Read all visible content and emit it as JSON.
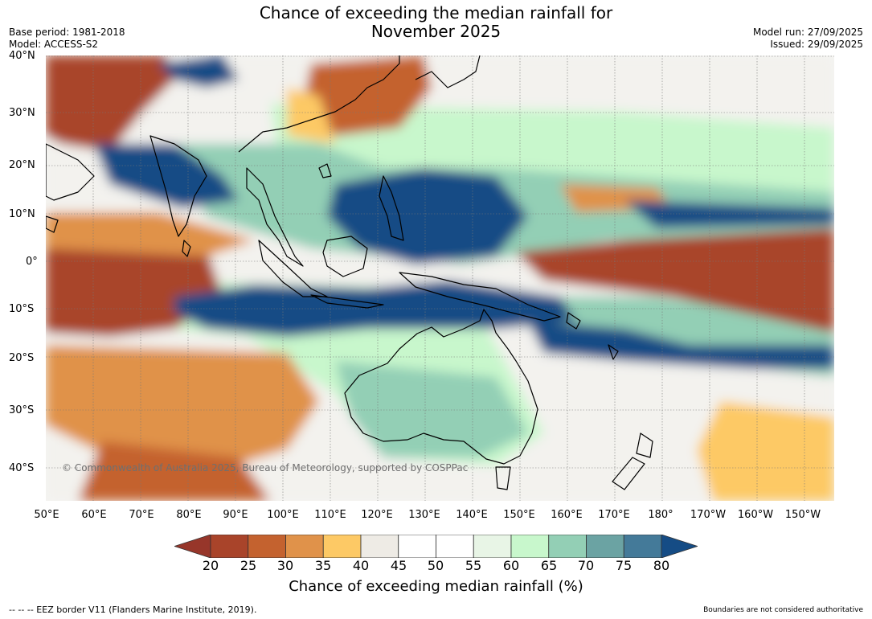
{
  "title_line1": "Chance of exceeding the median rainfall for",
  "title_line2": "November 2025",
  "base_period": "Base period: 1981-2018",
  "model": "Model: ACCESS-S2",
  "model_run": "Model run: 27/09/2025",
  "issued": "Issued: 29/09/2025",
  "copyright": "© Commonwealth of Australia 2025, Bureau of Meteorology, supported by COSPPac",
  "lat_labels": [
    "40°N",
    "30°N",
    "20°N",
    "10°N",
    "0°",
    "10°S",
    "20°S",
    "30°S",
    "40°S"
  ],
  "lon_labels": [
    "50°E",
    "60°E",
    "70°E",
    "80°E",
    "90°E",
    "100°E",
    "110°E",
    "120°E",
    "130°E",
    "140°E",
    "150°E",
    "160°E",
    "170°E",
    "180°",
    "170°W",
    "160°W",
    "150°W"
  ],
  "colorbar": {
    "label": "Chance of exceeding median rainfall (%)",
    "ticks": [
      "20",
      "25",
      "30",
      "35",
      "40",
      "45",
      "50",
      "55",
      "60",
      "65",
      "70",
      "75",
      "80"
    ],
    "under_color": "#97362a",
    "over_color": "#154c85",
    "colors": [
      "#a9442a",
      "#c4622f",
      "#e0924a",
      "#fdc965",
      "#eeebe5",
      "#ffffff",
      "#ffffff",
      "#e8f5e6",
      "#c8f7cc",
      "#93cfb5",
      "#6ba3a3",
      "#447a99"
    ]
  },
  "eez_note": "--  --  -- EEZ border V11 (Flanders Marine Institute, 2019).",
  "disclaimer": "Boundaries are not considered authoritative"
}
